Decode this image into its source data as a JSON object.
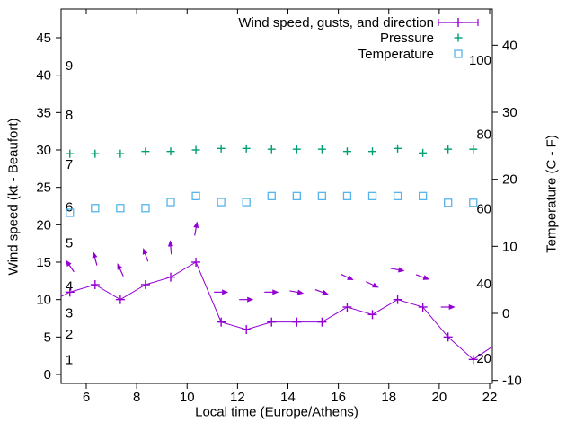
{
  "figure": {
    "background": "#ffffff",
    "text_color": "#000000"
  },
  "labels": {
    "x": "Local time (Europe/Athens)",
    "y_left": "Wind speed (kt - Beaufort)",
    "y_right": "Temperature (C - F)"
  },
  "legend": {
    "items": [
      {
        "label": "Wind speed, gusts, and direction",
        "sample": "line-plus",
        "color": "#9400d3"
      },
      {
        "label": "Pressure",
        "sample": "plus",
        "color": "#009e73"
      },
      {
        "label": "Temperature",
        "sample": "square",
        "color": "#56b4e9"
      }
    ]
  },
  "chart_data": {
    "type": "line",
    "title": "",
    "xlabel": "Local time (Europe/Athens)",
    "ylabel_left": "Wind speed (kt - Beaufort)",
    "ylabel_right": "Temperature (C - F)",
    "grid": false,
    "legend_position": "top-right-inside",
    "x_axis": {
      "min": 5.0,
      "max": 22.1,
      "ticks": [
        6,
        8,
        10,
        12,
        14,
        16,
        18,
        20,
        22
      ]
    },
    "y_axis_left": {
      "min": -1.2,
      "max": 48.8,
      "ticks": [
        0,
        5,
        10,
        15,
        20,
        25,
        30,
        35,
        40,
        45
      ]
    },
    "y_axis_right": {
      "min": -10.4,
      "max": 45.4,
      "ticks": [
        -10,
        0,
        10,
        20,
        30,
        40
      ]
    },
    "beaufort_scale_labels": [
      {
        "text": "1",
        "kt": 2.0
      },
      {
        "text": "2",
        "kt": 5.4
      },
      {
        "text": "3",
        "kt": 8.2
      },
      {
        "text": "4",
        "kt": 11.8
      },
      {
        "text": "5",
        "kt": 17.6
      },
      {
        "text": "6",
        "kt": 22.4
      },
      {
        "text": "7",
        "kt": 28.1
      },
      {
        "text": "8",
        "kt": 34.7
      },
      {
        "text": "9",
        "kt": 41.3
      }
    ],
    "fahrenheit_scale_labels": [
      {
        "text": "20",
        "celsius": -6.7
      },
      {
        "text": "40",
        "celsius": 4.4
      },
      {
        "text": "60",
        "celsius": 15.6
      },
      {
        "text": "80",
        "celsius": 26.7
      },
      {
        "text": "100",
        "celsius": 37.8
      }
    ],
    "x": [
      5.35,
      6.35,
      7.35,
      8.35,
      9.35,
      10.35,
      11.35,
      12.35,
      13.35,
      14.35,
      15.35,
      16.35,
      17.35,
      18.35,
      19.35,
      20.35,
      21.35
    ],
    "series": [
      {
        "name": "Wind speed, gusts, and direction",
        "axis": "left",
        "color": "#9400d3",
        "marker": "plus",
        "line": true,
        "values": [
          11,
          12,
          10,
          12,
          13,
          15,
          7,
          6,
          7,
          7,
          7,
          9,
          8,
          10,
          9,
          5,
          2
        ],
        "edge_entry": {
          "x": 5.0,
          "value": 10.4
        },
        "edge_exit": {
          "x": 22.1,
          "value": 3.7
        }
      },
      {
        "name": "Gust arrows (speed and direction)",
        "axis": "left",
        "color": "#9400d3",
        "marker": "arrow",
        "line": false,
        "values": [
          14.5,
          15.5,
          14,
          16,
          17,
          19.5,
          11,
          10,
          11,
          11,
          11,
          13,
          12,
          14,
          13,
          9,
          null
        ],
        "direction_deg": [
          125,
          105,
          115,
          110,
          95,
          80,
          0,
          0,
          0,
          -10,
          -20,
          -25,
          -25,
          -10,
          -20,
          0,
          null
        ]
      },
      {
        "name": "Pressure",
        "axis": "left",
        "color": "#009e73",
        "marker": "plus",
        "line": false,
        "values": [
          29.5,
          29.5,
          29.5,
          29.8,
          29.8,
          30.0,
          30.2,
          30.2,
          30.1,
          30.1,
          30.1,
          29.8,
          29.8,
          30.2,
          29.6,
          30.1,
          30.1
        ]
      },
      {
        "name": "Temperature",
        "axis": "right",
        "color": "#56b4e9",
        "marker": "open-square",
        "line": false,
        "values": [
          15.0,
          15.7,
          15.7,
          15.7,
          16.6,
          17.5,
          16.6,
          16.6,
          17.5,
          17.5,
          17.5,
          17.5,
          17.5,
          17.5,
          17.5,
          16.5,
          16.5
        ]
      }
    ]
  }
}
